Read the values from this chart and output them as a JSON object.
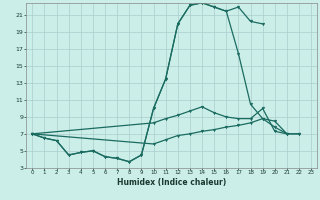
{
  "xlabel": "Humidex (Indice chaleur)",
  "background_color": "#cceee8",
  "grid_color": "#aacccc",
  "line_color": "#1a6b60",
  "xlim": [
    -0.5,
    23.5
  ],
  "ylim": [
    3,
    22.5
  ],
  "yticks": [
    3,
    5,
    7,
    9,
    11,
    13,
    15,
    17,
    19,
    21
  ],
  "xticks": [
    0,
    1,
    2,
    3,
    4,
    5,
    6,
    7,
    8,
    9,
    10,
    11,
    12,
    13,
    14,
    15,
    16,
    17,
    18,
    19,
    20,
    21,
    22,
    23
  ],
  "line1_x": [
    0,
    1,
    2,
    3,
    4,
    5,
    6,
    7,
    8,
    9,
    10,
    11,
    12,
    13,
    14,
    15,
    16,
    17,
    18,
    19
  ],
  "line1_y": [
    7.0,
    6.5,
    6.2,
    4.5,
    4.8,
    5.0,
    4.3,
    4.1,
    3.7,
    4.5,
    10.0,
    13.5,
    20.0,
    22.2,
    22.5,
    22.0,
    21.5,
    22.0,
    20.3,
    20.0
  ],
  "line2_x": [
    0,
    1,
    2,
    3,
    4,
    5,
    6,
    7,
    8,
    9,
    10,
    11,
    12,
    13,
    14,
    15,
    16,
    17,
    18,
    19,
    20,
    21
  ],
  "line2_y": [
    7.0,
    6.5,
    6.2,
    4.5,
    4.8,
    5.0,
    4.3,
    4.1,
    3.7,
    4.5,
    10.0,
    13.5,
    20.0,
    22.2,
    22.5,
    22.0,
    21.5,
    16.5,
    10.5,
    8.8,
    8.5,
    7.0
  ],
  "line3_x": [
    0,
    10,
    11,
    12,
    13,
    14,
    15,
    16,
    17,
    18,
    19,
    20,
    21,
    22
  ],
  "line3_y": [
    7.0,
    8.3,
    8.8,
    9.2,
    9.7,
    10.2,
    9.5,
    9.0,
    8.8,
    8.8,
    10.0,
    7.3,
    7.0,
    7.0
  ],
  "line4_x": [
    0,
    10,
    11,
    12,
    13,
    14,
    15,
    16,
    17,
    18,
    19,
    20,
    21,
    22
  ],
  "line4_y": [
    7.0,
    5.8,
    6.3,
    6.8,
    7.0,
    7.3,
    7.5,
    7.8,
    8.0,
    8.3,
    8.8,
    7.8,
    7.0,
    7.0
  ]
}
